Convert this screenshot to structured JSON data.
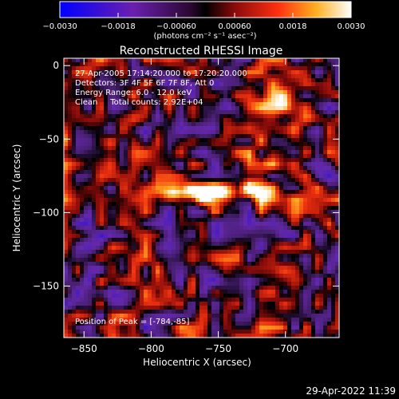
{
  "chart_data": {
    "type": "heatmap",
    "title": "Reconstructed RHESSI Image",
    "xlabel": "Heliocentric X (arcsec)",
    "ylabel": "Heliocentric Y (arcsec)",
    "xlim": [
      -865,
      -660
    ],
    "ylim": [
      -185,
      5
    ],
    "x_ticks": [
      {
        "value": -850,
        "label": "−850"
      },
      {
        "value": -800,
        "label": "−800"
      },
      {
        "value": -750,
        "label": "−750"
      },
      {
        "value": -700,
        "label": "−700"
      }
    ],
    "y_ticks": [
      {
        "value": 0,
        "label": "0"
      },
      {
        "value": -50,
        "label": "−50"
      },
      {
        "value": -100,
        "label": "−100"
      },
      {
        "value": -150,
        "label": "−150"
      }
    ],
    "colorbar": {
      "min": -0.003,
      "max": 0.003,
      "colormap": "blue-purple-black-red-yellow-white",
      "ticks": [
        {
          "value": -0.003,
          "label": "−0.0030"
        },
        {
          "value": -0.0018,
          "label": "−0.0018"
        },
        {
          "value": -0.0006,
          "label": "−0.00060"
        },
        {
          "value": 0.0006,
          "label": "0.00060"
        },
        {
          "value": 0.0018,
          "label": "0.0018"
        },
        {
          "value": 0.003,
          "label": "0.0030"
        }
      ],
      "unit_label": "(photons cm⁻² s⁻¹ asec⁻²)"
    },
    "peak": {
      "x": -784,
      "y": -85
    },
    "colors": {
      "background": "#000000",
      "negative_low": "#1010ff",
      "negative_mid": "#5a2a88",
      "zero": "#000000",
      "positive_mid": "#d02010",
      "positive_high": "#ffd020",
      "positive_max": "#ffffff"
    }
  },
  "annotations": {
    "time_range": "27-Apr-2005 17:14:20.000 to 17:20:20.000",
    "detectors": "Detectors: 3F 4F 5F 6F 7F 8F, Att 0",
    "energy": "Energy Range: 6.0 - 12.0 keV",
    "clean": "Clean     Total counts: 2.92E+04",
    "peak_text": "Position of Peak = [-784,-85]"
  },
  "footer": {
    "timestamp": "29-Apr-2022 11:39"
  }
}
